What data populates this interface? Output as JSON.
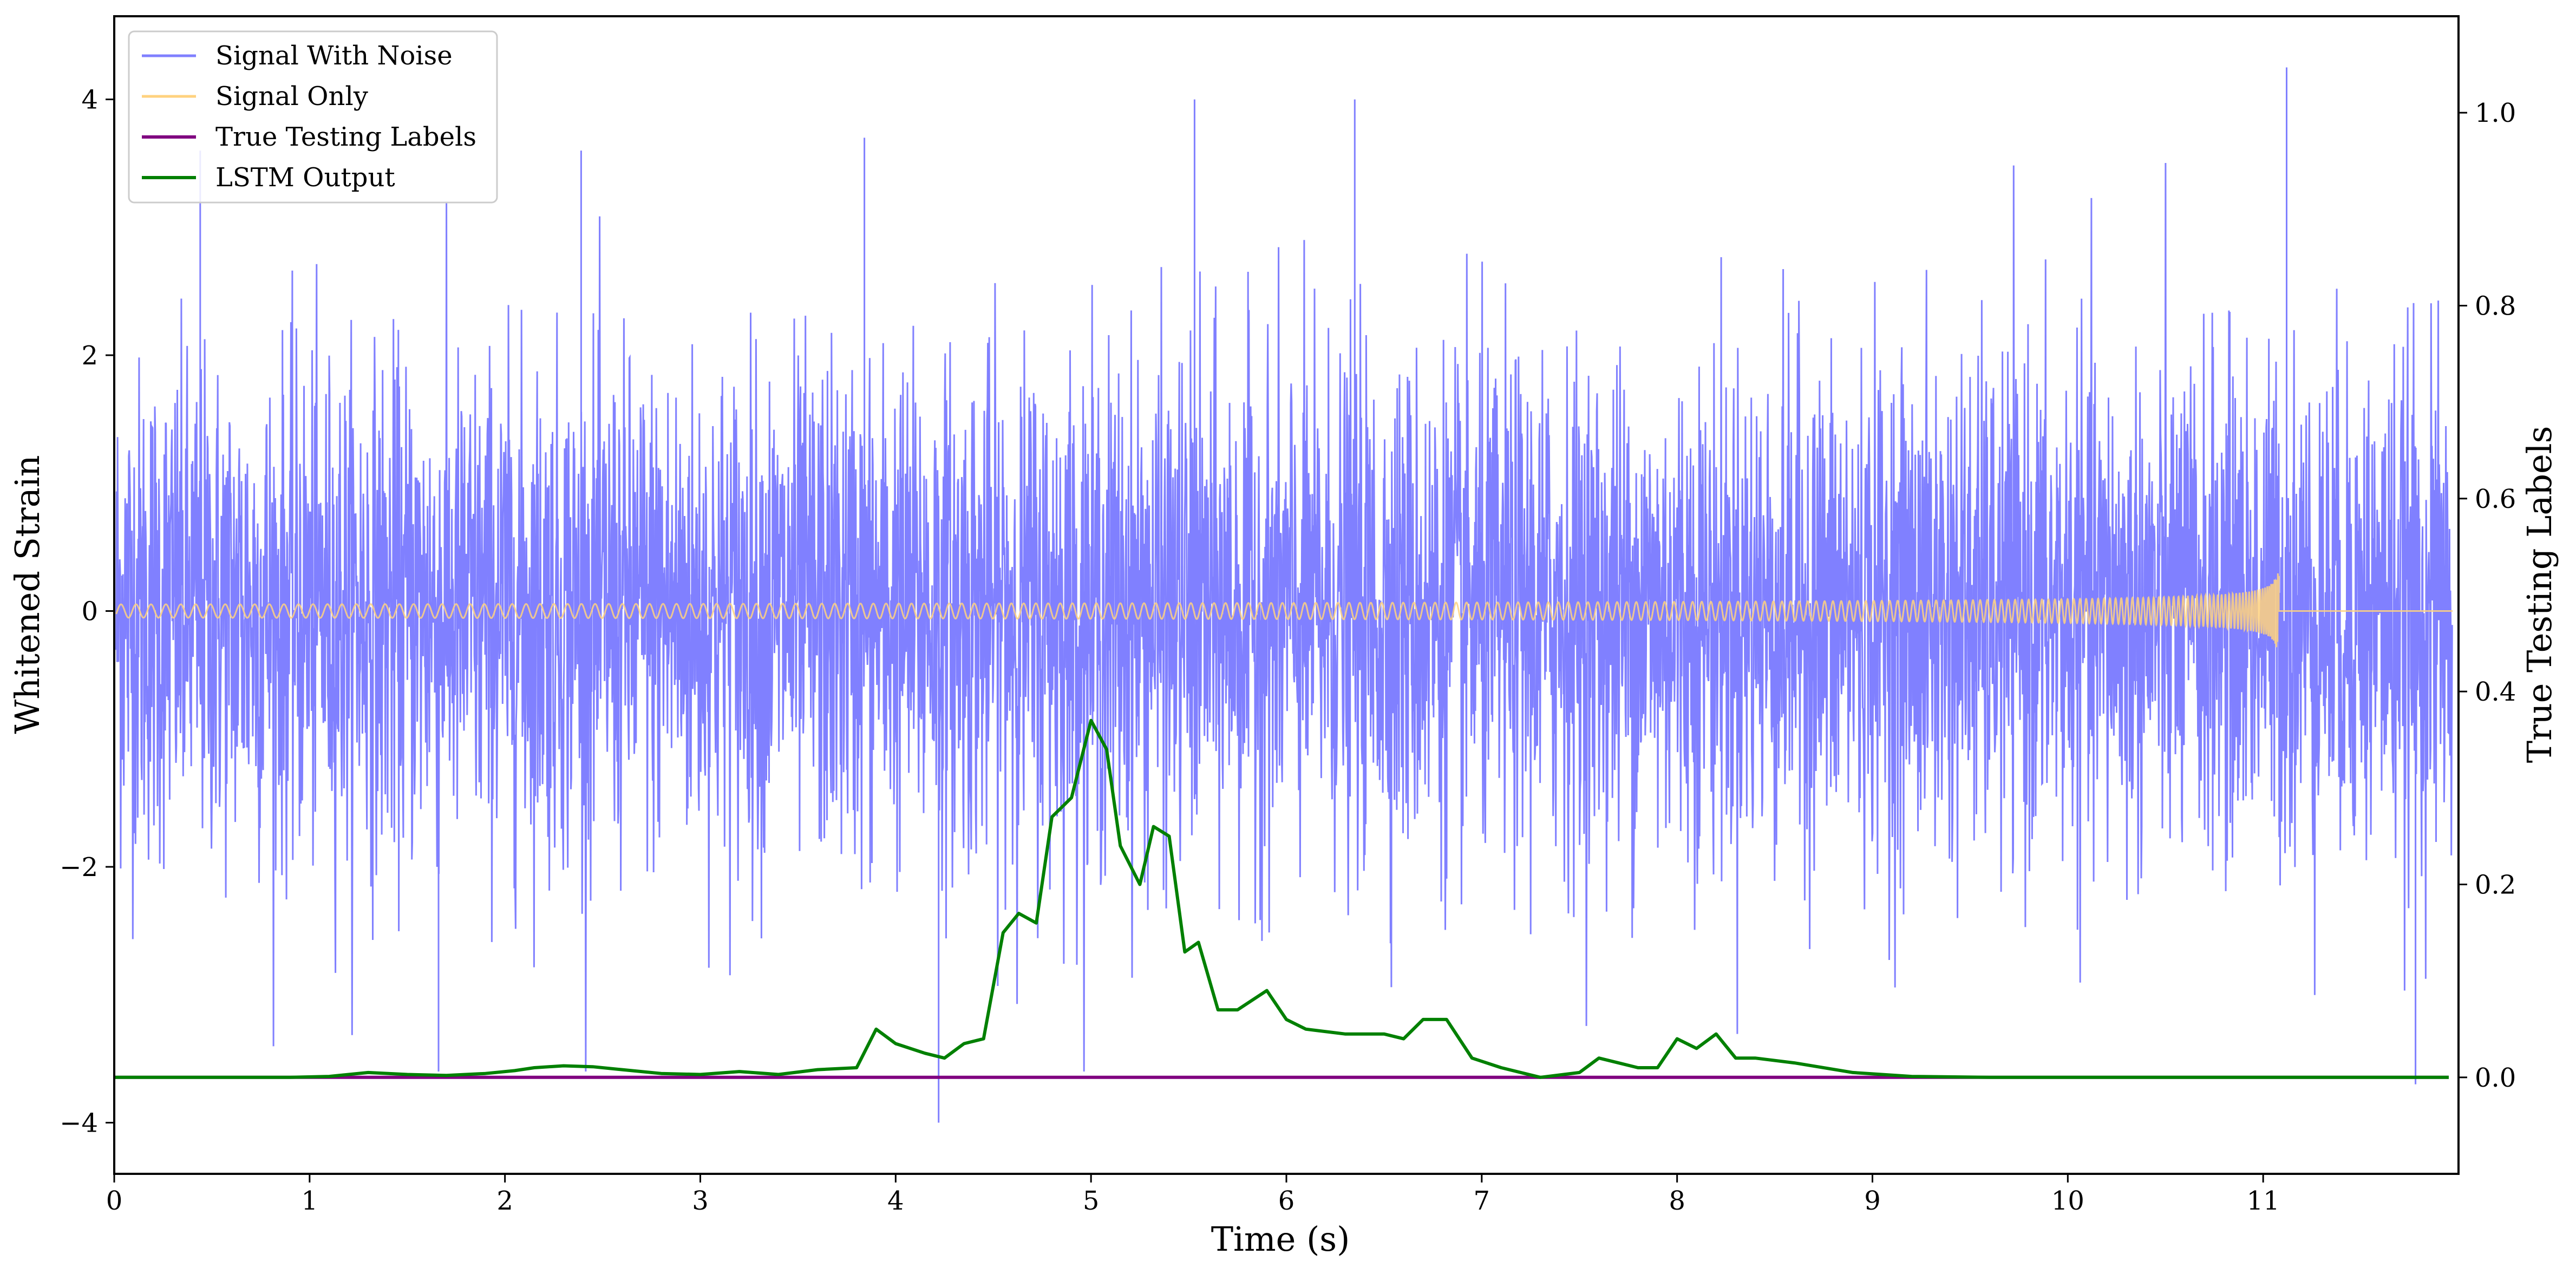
{
  "chart_data": {
    "type": "line",
    "xlabel": "Time (s)",
    "ylabel": "Whitened Strain",
    "ylabel_right": "True Testing Labels",
    "xlim": [
      0,
      12
    ],
    "ylim": [
      -4.4,
      4.65
    ],
    "ylim_right": [
      -0.1,
      1.1
    ],
    "x_ticks": [
      0,
      1,
      2,
      3,
      4,
      5,
      6,
      7,
      8,
      9,
      10,
      11
    ],
    "y_ticks": [
      -4,
      -2,
      0,
      2,
      4
    ],
    "y_ticks_right": [
      0.0,
      0.2,
      0.4,
      0.6,
      0.8,
      1.0
    ],
    "x_tick_labels": [
      "0",
      "1",
      "2",
      "3",
      "4",
      "5",
      "6",
      "7",
      "8",
      "9",
      "10",
      "11"
    ],
    "y_tick_labels": [
      "−4",
      "−2",
      "0",
      "2",
      "4"
    ],
    "y_tick_labels_right": [
      "0.0",
      "0.2",
      "0.4",
      "0.6",
      "0.8",
      "1.0"
    ],
    "grid": false,
    "legend_position": "top-left",
    "legend": [
      {
        "label": "Signal With Noise",
        "color": "#8080ff"
      },
      {
        "label": "Signal Only",
        "color": "#ffd27f"
      },
      {
        "label": "True Testing Labels",
        "color": "#800080"
      },
      {
        "label": "LSTM Output",
        "color": "#008000"
      }
    ],
    "series": [
      {
        "name": "Signal With Noise",
        "axis": "left",
        "color": "#8080ff",
        "description_values": {
          "mean": 0,
          "std": 0.85,
          "min": -4.0,
          "max": 4.25
        },
        "peaks": [
          {
            "x": 0.44,
            "y": 3.6
          },
          {
            "x": 2.39,
            "y": 3.6
          },
          {
            "x": 3.84,
            "y": 3.7
          },
          {
            "x": 5.53,
            "y": 4.0
          },
          {
            "x": 6.35,
            "y": 4.0
          },
          {
            "x": 11.12,
            "y": 4.25
          },
          {
            "x": 4.22,
            "y": -4.0
          },
          {
            "x": 1.66,
            "y": -3.6
          },
          {
            "x": 11.78,
            "y": -3.7
          }
        ]
      },
      {
        "name": "Signal Only",
        "axis": "left",
        "color": "#ffd27f",
        "chirp_end_x": 11.08,
        "peak_amplitude": 0.38
      },
      {
        "name": "True Testing Labels",
        "axis": "right",
        "color": "#800080",
        "x": [
          0,
          11.95
        ],
        "values": [
          0.0,
          0.0
        ]
      },
      {
        "name": "LSTM Output",
        "axis": "right",
        "color": "#008000",
        "x": [
          0.0,
          0.9,
          1.1,
          1.3,
          1.5,
          1.7,
          1.9,
          2.05,
          2.15,
          2.3,
          2.45,
          2.6,
          2.8,
          3.0,
          3.2,
          3.4,
          3.6,
          3.8,
          3.9,
          4.0,
          4.15,
          4.25,
          4.35,
          4.45,
          4.55,
          4.63,
          4.72,
          4.8,
          4.9,
          5.0,
          5.08,
          5.15,
          5.25,
          5.32,
          5.4,
          5.48,
          5.55,
          5.65,
          5.75,
          5.9,
          6.0,
          6.1,
          6.3,
          6.5,
          6.6,
          6.7,
          6.82,
          6.95,
          7.1,
          7.3,
          7.5,
          7.6,
          7.7,
          7.8,
          7.9,
          8.0,
          8.1,
          8.2,
          8.3,
          8.4,
          8.6,
          8.9,
          9.2,
          9.6,
          10.0,
          10.5,
          11.0,
          11.5,
          11.95
        ],
        "values": [
          0.0,
          0.0,
          0.001,
          0.005,
          0.003,
          0.002,
          0.004,
          0.007,
          0.01,
          0.012,
          0.011,
          0.008,
          0.004,
          0.003,
          0.006,
          0.003,
          0.008,
          0.01,
          0.05,
          0.035,
          0.025,
          0.02,
          0.035,
          0.04,
          0.15,
          0.17,
          0.16,
          0.27,
          0.29,
          0.37,
          0.34,
          0.24,
          0.2,
          0.26,
          0.25,
          0.13,
          0.14,
          0.07,
          0.07,
          0.09,
          0.06,
          0.05,
          0.045,
          0.045,
          0.04,
          0.06,
          0.06,
          0.02,
          0.01,
          0.0,
          0.005,
          0.02,
          0.015,
          0.01,
          0.01,
          0.04,
          0.03,
          0.045,
          0.02,
          0.02,
          0.015,
          0.005,
          0.001,
          0.0,
          0.0,
          0.0,
          0.0,
          0.0,
          0.0
        ]
      }
    ]
  }
}
